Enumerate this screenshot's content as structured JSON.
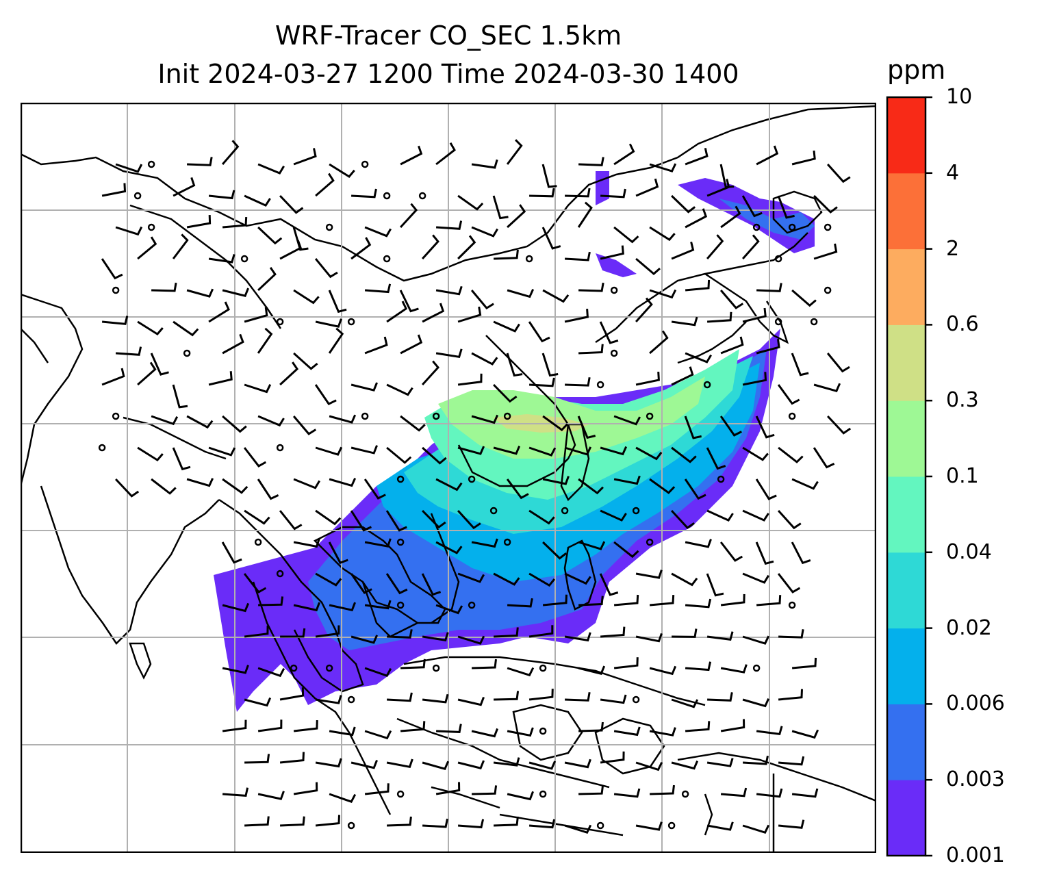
{
  "title": {
    "line1": "WRF-Tracer CO_SEC 1.5km",
    "line2": "Init 2024-03-27 1200 Time 2024-03-30 1400"
  },
  "colorbar": {
    "unit": "ppm",
    "ticks": [
      "0.001",
      "0.003",
      "0.006",
      "0.02",
      "0.04",
      "0.1",
      "0.3",
      "0.6",
      "2",
      "4",
      "10"
    ],
    "colors": [
      "#6a2cf8",
      "#3470f0",
      "#04b0ec",
      "#2ed9d6",
      "#63f6bf",
      "#9ef895",
      "#cfe086",
      "#fdac5f",
      "#fc7038",
      "#f82a17"
    ]
  },
  "map": {
    "region": "East and Southeast Asia",
    "gridlines": true,
    "tracer_colors": {
      "very_low": "#6a2cf8",
      "low": "#3470f0",
      "mid": "#04b0ec",
      "midhigh": "#2ed9d6",
      "high": "#63f6bf",
      "higher": "#9ef895",
      "top": "#cfe086"
    }
  }
}
